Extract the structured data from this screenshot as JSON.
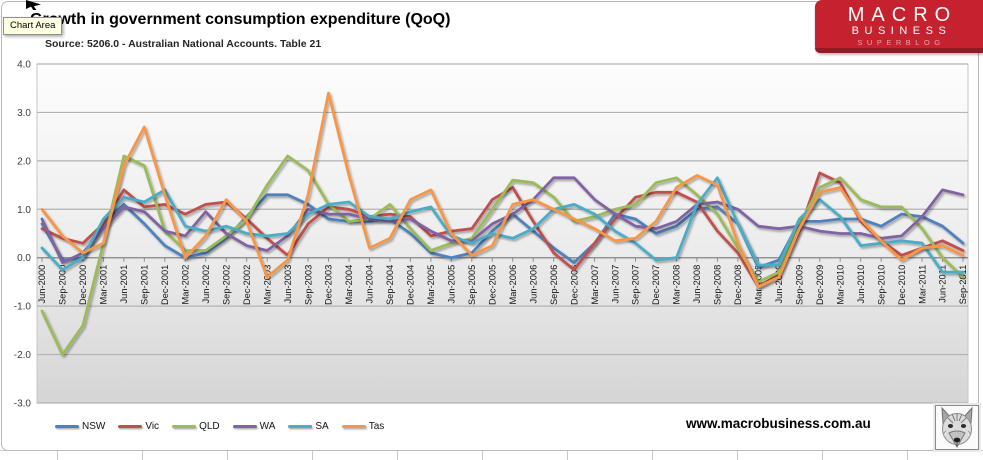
{
  "window": {
    "tooltip": "Chart Area"
  },
  "header": {
    "title": "Growth in government consumption expenditure (QoQ)",
    "source": "Source: 5206.0 - Australian National Accounts. Table 21"
  },
  "logo": {
    "line1": "MACRO",
    "line2": "BUSINESS",
    "line3": "SUPERBLOG",
    "bg_color": "#c5212e",
    "strip_color": "#8e1c25"
  },
  "footer": {
    "website": "www.macrobusiness.com.au"
  },
  "chart_data": {
    "type": "line",
    "title": "Growth in government consumption expenditure (QoQ)",
    "subtitle": "Source: 5206.0 - Australian National Accounts. Table 21",
    "grid": true,
    "legend_position": "bottom",
    "y_axis": {
      "min": -3.0,
      "max": 4.0,
      "tick_step": 1.0,
      "tick_labels": [
        "4.0",
        "3.0",
        "2.0",
        "1.0",
        "0.0",
        "-1.0",
        "-2.0",
        "-3.0"
      ]
    },
    "x_labels": [
      "Jun-2000",
      "Sep-2000",
      "Dec-2000",
      "Mar-2001",
      "Jun-2001",
      "Sep-2001",
      "Dec-2001",
      "Mar-2002",
      "Jun-2002",
      "Sep-2002",
      "Dec-2002",
      "Mar-2003",
      "Jun-2003",
      "Sep-2003",
      "Dec-2003",
      "Mar-2004",
      "Jun-2004",
      "Sep-2004",
      "Dec-2004",
      "Mar-2005",
      "Jun-2005",
      "Sep-2005",
      "Dec-2005",
      "Mar-2006",
      "Jun-2006",
      "Sep-2006",
      "Dec-2006",
      "Mar-2007",
      "Jun-2007",
      "Sep-2007",
      "Dec-2007",
      "Mar-2008",
      "Jun-2008",
      "Sep-2008",
      "Dec-2008",
      "Mar-2009",
      "Jun-2009",
      "Sep-2009",
      "Dec-2009",
      "Mar-2010",
      "Jun-2010",
      "Sep-2010",
      "Dec-2010",
      "Mar-2011",
      "Jun-2011",
      "Sep-2011"
    ],
    "series": [
      {
        "name": "NSW",
        "color": "#4F81BD",
        "values": [
          0.7,
          -0.05,
          0.0,
          0.7,
          1.1,
          0.7,
          0.25,
          0.0,
          0.1,
          0.4,
          0.85,
          1.3,
          1.3,
          1.1,
          0.8,
          0.75,
          0.75,
          0.8,
          0.5,
          0.1,
          0.0,
          0.1,
          0.55,
          0.9,
          0.55,
          0.2,
          -0.1,
          0.3,
          0.9,
          0.8,
          0.5,
          0.65,
          1.0,
          1.05,
          0.7,
          -0.2,
          -0.05,
          0.75,
          0.75,
          0.8,
          0.8,
          0.65,
          0.9,
          0.85,
          0.65,
          0.3
        ]
      },
      {
        "name": "Vic",
        "color": "#C0504D",
        "values": [
          0.6,
          0.4,
          0.3,
          0.7,
          1.4,
          1.05,
          1.1,
          0.9,
          1.1,
          1.15,
          0.8,
          0.4,
          0.05,
          0.7,
          1.05,
          1.0,
          0.85,
          0.9,
          0.85,
          0.45,
          0.55,
          0.6,
          1.2,
          1.45,
          0.75,
          0.1,
          -0.25,
          0.3,
          0.8,
          1.25,
          1.35,
          1.35,
          1.15,
          0.55,
          0.1,
          -0.6,
          -0.35,
          0.55,
          1.75,
          1.55,
          0.75,
          0.35,
          0.05,
          0.2,
          0.35,
          0.15
        ]
      },
      {
        "name": "QLD",
        "color": "#9BBB59",
        "values": [
          -1.1,
          -2.0,
          -1.4,
          0.3,
          2.1,
          1.9,
          0.55,
          0.15,
          0.15,
          0.45,
          0.8,
          1.5,
          2.1,
          1.8,
          1.1,
          0.75,
          0.8,
          1.1,
          0.6,
          0.15,
          0.3,
          0.4,
          1.0,
          1.6,
          1.55,
          1.25,
          0.75,
          0.85,
          1.0,
          1.1,
          1.55,
          1.65,
          1.3,
          0.9,
          0.2,
          -0.5,
          -0.3,
          0.7,
          1.45,
          1.65,
          1.2,
          1.05,
          1.05,
          0.6,
          0.0,
          -0.4
        ]
      },
      {
        "name": "WA",
        "color": "#8064A2",
        "values": [
          0.8,
          -0.1,
          0.1,
          0.6,
          1.05,
          0.95,
          0.55,
          0.45,
          0.95,
          0.5,
          0.25,
          0.15,
          0.45,
          1.0,
          0.9,
          0.9,
          0.8,
          0.75,
          0.8,
          0.55,
          0.35,
          0.35,
          0.7,
          0.9,
          1.2,
          1.65,
          1.65,
          1.2,
          0.9,
          0.65,
          0.6,
          0.75,
          1.1,
          1.15,
          1.0,
          0.65,
          0.6,
          0.65,
          0.55,
          0.5,
          0.5,
          0.4,
          0.45,
          0.85,
          1.4,
          1.3
        ]
      },
      {
        "name": "SA",
        "color": "#4BACC6",
        "values": [
          0.2,
          -0.25,
          0.0,
          0.8,
          1.25,
          1.15,
          1.4,
          0.65,
          0.55,
          0.65,
          0.5,
          0.45,
          0.5,
          0.9,
          1.1,
          1.15,
          0.85,
          0.8,
          0.95,
          1.05,
          0.45,
          0.3,
          0.5,
          0.4,
          0.6,
          1.0,
          1.1,
          0.9,
          0.55,
          0.3,
          -0.05,
          0.0,
          1.1,
          1.65,
          0.7,
          -0.15,
          -0.15,
          0.8,
          1.2,
          0.85,
          0.25,
          0.3,
          0.35,
          0.3,
          -0.3,
          -0.3
        ]
      },
      {
        "name": "Tas",
        "color": "#F79646",
        "values": [
          1.0,
          0.45,
          0.1,
          0.3,
          1.9,
          2.7,
          1.3,
          0.0,
          0.45,
          1.2,
          0.75,
          -0.4,
          -0.05,
          1.3,
          3.4,
          1.7,
          0.2,
          0.4,
          1.2,
          1.4,
          0.5,
          0.05,
          0.25,
          1.1,
          1.2,
          1.0,
          0.8,
          0.6,
          0.35,
          0.4,
          0.75,
          1.45,
          1.7,
          1.5,
          0.3,
          -0.6,
          -0.4,
          0.6,
          1.35,
          1.45,
          0.8,
          0.35,
          -0.05,
          0.2,
          0.25,
          0.05
        ]
      }
    ]
  }
}
